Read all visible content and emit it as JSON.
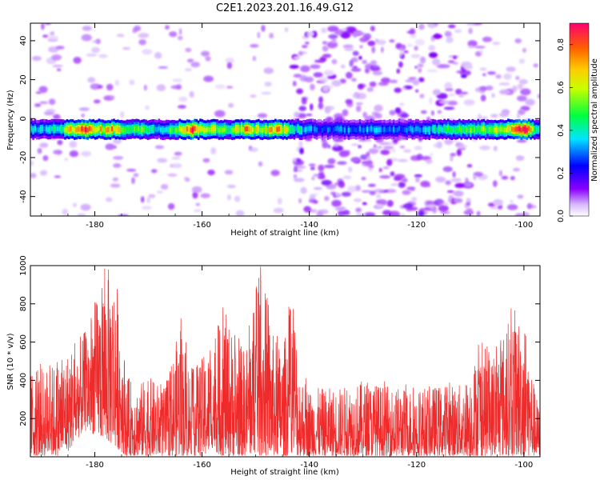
{
  "figure": {
    "title": "C2E1.2023.201.16.49.G12"
  },
  "colors": {
    "plasma_purple": "#9c5cf0",
    "signal_band": "#2b2bd9",
    "snr_line": "#ee2a2a",
    "colorbar_stops": [
      "#ffffff",
      "#8a00ff",
      "#0000ff",
      "#00e5ff",
      "#00ff00",
      "#ffff00",
      "#ff8000",
      "#ff0060"
    ]
  },
  "chart_data": [
    {
      "type": "heatmap",
      "xlabel": "Height of straight line (km)",
      "ylabel": "Frequency (Hz)",
      "xlim": [
        -192,
        -97
      ],
      "ylim": [
        -50,
        49
      ],
      "xticks": [
        -180,
        -160,
        -140,
        -120,
        -100
      ],
      "yticks": [
        -40,
        -20,
        0,
        20,
        40
      ],
      "xtick_labels": [
        "-180",
        "-160",
        "-140",
        "-120",
        "-100"
      ],
      "ytick_labels": [
        "-40",
        "-20",
        "0",
        "20",
        "40"
      ],
      "signal_band": {
        "frequency_hz": -5.5,
        "width_hz": 5,
        "peak_amplitude_by_height": [
          {
            "x": -189,
            "a": 0.35
          },
          {
            "x": -186,
            "a": 0.45
          },
          {
            "x": -183,
            "a": 0.88
          },
          {
            "x": -180,
            "a": 0.6
          },
          {
            "x": -177,
            "a": 0.7
          },
          {
            "x": -174,
            "a": 0.5
          },
          {
            "x": -171,
            "a": 0.5
          },
          {
            "x": -168,
            "a": 0.35
          },
          {
            "x": -165,
            "a": 0.55
          },
          {
            "x": -162,
            "a": 0.8
          },
          {
            "x": -158,
            "a": 0.55
          },
          {
            "x": -155,
            "a": 0.5
          },
          {
            "x": -152,
            "a": 0.7
          },
          {
            "x": -149,
            "a": 0.55
          },
          {
            "x": -146,
            "a": 0.72
          },
          {
            "x": -143,
            "a": 0.4
          },
          {
            "x": -138,
            "a": 0.25
          },
          {
            "x": -134,
            "a": 0.3
          },
          {
            "x": -130,
            "a": 0.3
          },
          {
            "x": -126,
            "a": 0.3
          },
          {
            "x": -122,
            "a": 0.3
          },
          {
            "x": -118,
            "a": 0.35
          },
          {
            "x": -114,
            "a": 0.45
          },
          {
            "x": -110,
            "a": 0.5
          },
          {
            "x": -106,
            "a": 0.55
          },
          {
            "x": -103,
            "a": 0.6
          },
          {
            "x": -100,
            "a": 0.88
          },
          {
            "x": -98,
            "a": 0.4
          }
        ]
      },
      "colorbar": {
        "label": "Normalized spectral amplitude",
        "range": [
          0.0,
          0.9
        ],
        "ticks": [
          0.0,
          0.2,
          0.4,
          0.6,
          0.8
        ],
        "tick_labels": [
          "0.0",
          "0.2",
          "0.4",
          "0.6",
          "0.8"
        ]
      }
    },
    {
      "type": "line",
      "xlabel": "Height of straight line (km)",
      "ylabel": "SNR (10 * v/v)",
      "xlim": [
        -192,
        -97
      ],
      "ylim": [
        0,
        1000
      ],
      "xticks": [
        -180,
        -160,
        -140,
        -120,
        -100
      ],
      "yticks": [
        200,
        400,
        600,
        800,
        1000
      ],
      "xtick_labels": [
        "-180",
        "-160",
        "-140",
        "-120",
        "-100"
      ],
      "ytick_labels": [
        "200",
        "400",
        "600",
        "800",
        "1000"
      ],
      "envelope": [
        {
          "x": -192,
          "base": 200,
          "peak": 450
        },
        {
          "x": -188,
          "base": 220,
          "peak": 480
        },
        {
          "x": -185,
          "base": 280,
          "peak": 560
        },
        {
          "x": -182,
          "base": 380,
          "peak": 650
        },
        {
          "x": -180,
          "base": 440,
          "peak": 800
        },
        {
          "x": -178,
          "base": 520,
          "peak": 1000
        },
        {
          "x": -176,
          "base": 480,
          "peak": 960
        },
        {
          "x": -174,
          "base": 200,
          "peak": 420
        },
        {
          "x": -172,
          "base": 180,
          "peak": 380
        },
        {
          "x": -170,
          "base": 200,
          "peak": 420
        },
        {
          "x": -167,
          "base": 160,
          "peak": 360
        },
        {
          "x": -164,
          "base": 320,
          "peak": 700
        },
        {
          "x": -162,
          "base": 220,
          "peak": 450
        },
        {
          "x": -160,
          "base": 240,
          "peak": 520
        },
        {
          "x": -158,
          "base": 300,
          "peak": 580
        },
        {
          "x": -156,
          "base": 360,
          "peak": 780
        },
        {
          "x": -154,
          "base": 280,
          "peak": 640
        },
        {
          "x": -152,
          "base": 260,
          "peak": 560
        },
        {
          "x": -150,
          "base": 420,
          "peak": 860
        },
        {
          "x": -149,
          "base": 450,
          "peak": 1000
        },
        {
          "x": -147,
          "base": 300,
          "peak": 660
        },
        {
          "x": -145,
          "base": 260,
          "peak": 560
        },
        {
          "x": -143,
          "base": 440,
          "peak": 900
        },
        {
          "x": -142,
          "base": 200,
          "peak": 480
        },
        {
          "x": -140,
          "base": 140,
          "peak": 360
        },
        {
          "x": -135,
          "base": 150,
          "peak": 360
        },
        {
          "x": -130,
          "base": 160,
          "peak": 400
        },
        {
          "x": -125,
          "base": 150,
          "peak": 370
        },
        {
          "x": -120,
          "base": 140,
          "peak": 360
        },
        {
          "x": -115,
          "base": 150,
          "peak": 380
        },
        {
          "x": -111,
          "base": 160,
          "peak": 380
        },
        {
          "x": -108,
          "base": 260,
          "peak": 600
        },
        {
          "x": -106,
          "base": 220,
          "peak": 520
        },
        {
          "x": -104,
          "base": 260,
          "peak": 640
        },
        {
          "x": -102,
          "base": 360,
          "peak": 780
        },
        {
          "x": -100,
          "base": 320,
          "peak": 740
        },
        {
          "x": -98,
          "base": 120,
          "peak": 360
        },
        {
          "x": -97,
          "base": 80,
          "peak": 240
        }
      ]
    }
  ]
}
